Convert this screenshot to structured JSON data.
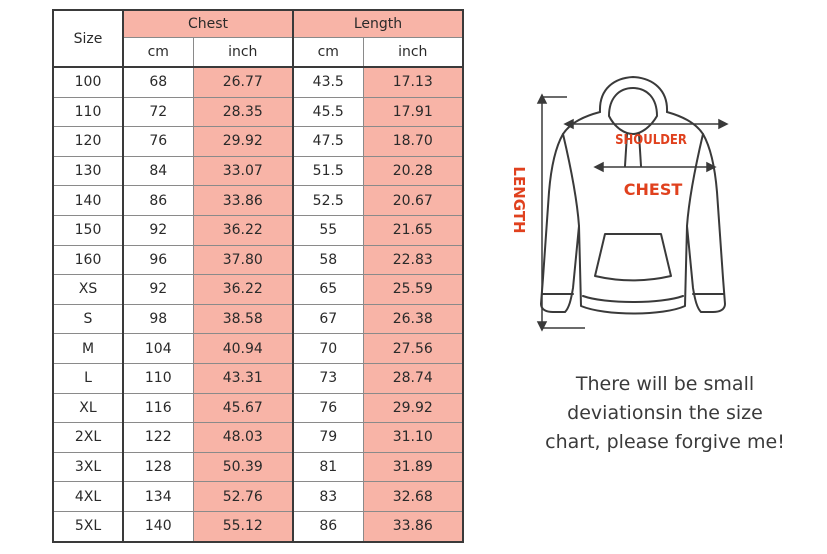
{
  "table": {
    "headers": {
      "size": "Size",
      "chest": "Chest",
      "length": "Length",
      "cm": "cm",
      "inch": "inch"
    },
    "rows": [
      {
        "size": "100",
        "chest_cm": "68",
        "chest_inch": "26.77",
        "length_cm": "43.5",
        "length_inch": "17.13"
      },
      {
        "size": "110",
        "chest_cm": "72",
        "chest_inch": "28.35",
        "length_cm": "45.5",
        "length_inch": "17.91"
      },
      {
        "size": "120",
        "chest_cm": "76",
        "chest_inch": "29.92",
        "length_cm": "47.5",
        "length_inch": "18.70"
      },
      {
        "size": "130",
        "chest_cm": "84",
        "chest_inch": "33.07",
        "length_cm": "51.5",
        "length_inch": "20.28"
      },
      {
        "size": "140",
        "chest_cm": "86",
        "chest_inch": "33.86",
        "length_cm": "52.5",
        "length_inch": "20.67"
      },
      {
        "size": "150",
        "chest_cm": "92",
        "chest_inch": "36.22",
        "length_cm": "55",
        "length_inch": "21.65"
      },
      {
        "size": "160",
        "chest_cm": "96",
        "chest_inch": "37.80",
        "length_cm": "58",
        "length_inch": "22.83"
      },
      {
        "size": "XS",
        "chest_cm": "92",
        "chest_inch": "36.22",
        "length_cm": "65",
        "length_inch": "25.59"
      },
      {
        "size": "S",
        "chest_cm": "98",
        "chest_inch": "38.58",
        "length_cm": "67",
        "length_inch": "26.38"
      },
      {
        "size": "M",
        "chest_cm": "104",
        "chest_inch": "40.94",
        "length_cm": "70",
        "length_inch": "27.56"
      },
      {
        "size": "L",
        "chest_cm": "110",
        "chest_inch": "43.31",
        "length_cm": "73",
        "length_inch": "28.74"
      },
      {
        "size": "XL",
        "chest_cm": "116",
        "chest_inch": "45.67",
        "length_cm": "76",
        "length_inch": "29.92"
      },
      {
        "size": "2XL",
        "chest_cm": "122",
        "chest_inch": "48.03",
        "length_cm": "79",
        "length_inch": "31.10"
      },
      {
        "size": "3XL",
        "chest_cm": "128",
        "chest_inch": "50.39",
        "length_cm": "81",
        "length_inch": "31.89"
      },
      {
        "size": "4XL",
        "chest_cm": "134",
        "chest_inch": "52.76",
        "length_cm": "83",
        "length_inch": "32.68"
      },
      {
        "size": "5XL",
        "chest_cm": "140",
        "chest_inch": "55.12",
        "length_cm": "86",
        "length_inch": "33.86"
      }
    ]
  },
  "diagram": {
    "shoulder_label": "SHOULDER",
    "chest_label": "CHEST",
    "length_label": "LENGTH"
  },
  "note": {
    "line1": "There will be small",
    "line2": "deviationsin the size",
    "line3": "chart, please forgive me!"
  },
  "colors": {
    "highlight": "#f8b4a7",
    "label_red": "#e0411e"
  }
}
